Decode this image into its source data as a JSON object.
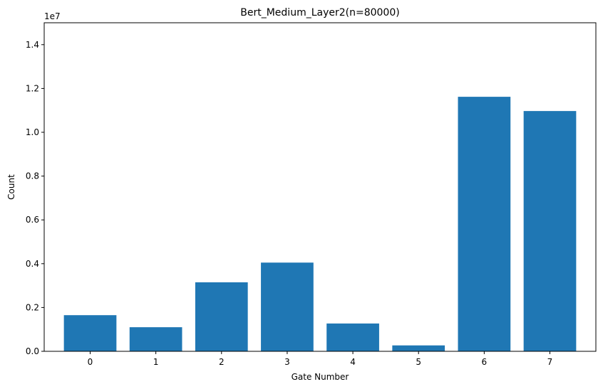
{
  "chart_data": {
    "type": "bar",
    "title": "Bert_Medium_Layer2(n=80000)",
    "xlabel": "Gate Number",
    "ylabel": "Count",
    "y_offset_label": "1e7",
    "categories": [
      "0",
      "1",
      "2",
      "3",
      "4",
      "5",
      "6",
      "7"
    ],
    "values": [
      1650000,
      1100000,
      3150000,
      4050000,
      1270000,
      270000,
      11620000,
      10970000
    ],
    "ylim": [
      0,
      15000000
    ],
    "y_ticks": [
      0,
      2000000,
      4000000,
      6000000,
      8000000,
      10000000,
      12000000,
      14000000
    ],
    "y_tick_labels": [
      "0.0",
      "0.2",
      "0.4",
      "0.6",
      "0.8",
      "1.0",
      "1.2",
      "1.4"
    ],
    "bar_color": "#1f77b4",
    "grid": false,
    "legend": false
  }
}
